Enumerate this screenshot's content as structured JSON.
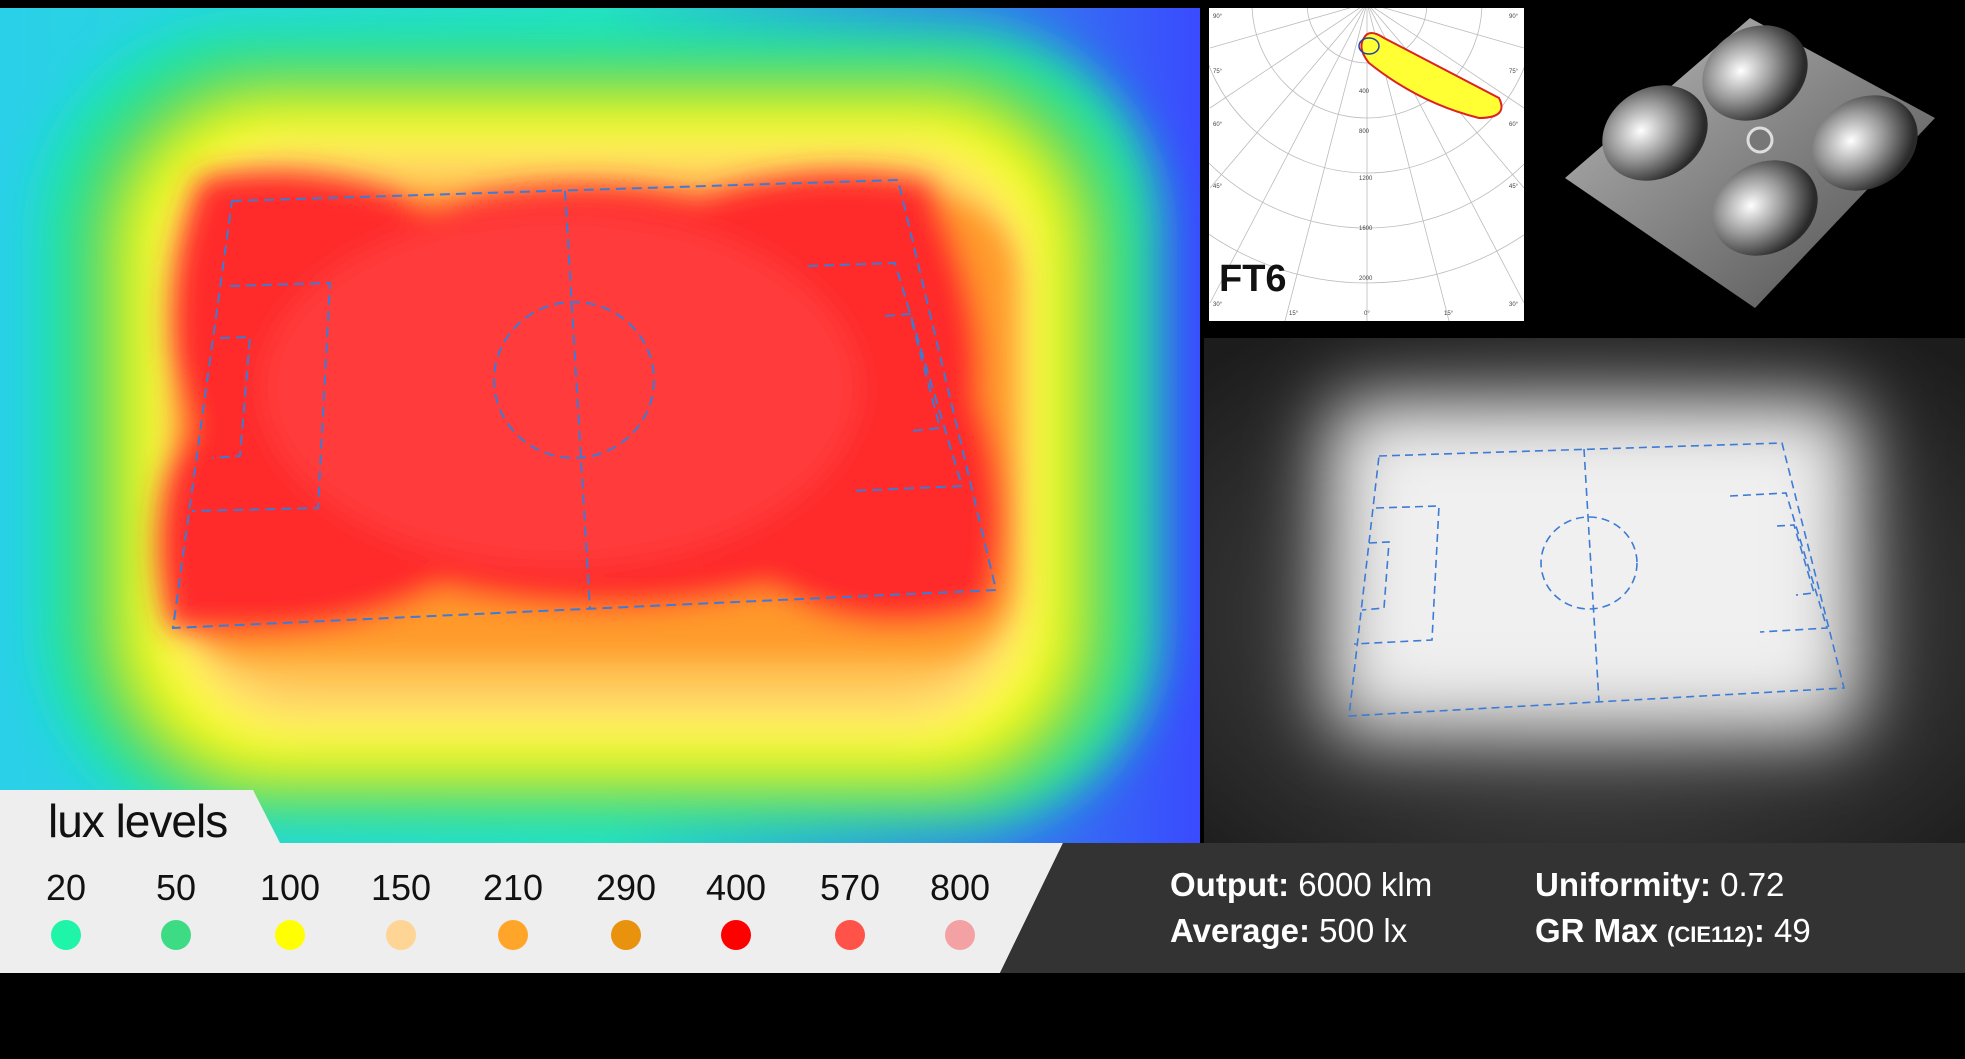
{
  "polar": {
    "label": "FT6",
    "angles": [
      "90°",
      "75°",
      "60°",
      "45°",
      "30°",
      "15°",
      "0°",
      "15°",
      "30°",
      "45°",
      "60°",
      "75°",
      "90°"
    ],
    "radial_values": [
      "400",
      "800",
      "1200",
      "1600",
      "2000"
    ]
  },
  "legend": {
    "title": "lux levels",
    "items": [
      {
        "value": "20",
        "color": "#1ff5a8"
      },
      {
        "value": "50",
        "color": "#3ddc84"
      },
      {
        "value": "100",
        "color": "#ffff00"
      },
      {
        "value": "150",
        "color": "#ffd595"
      },
      {
        "value": "210",
        "color": "#ffa62a"
      },
      {
        "value": "290",
        "color": "#e8920e"
      },
      {
        "value": "400",
        "color": "#ff0000"
      },
      {
        "value": "570",
        "color": "#ff5248"
      },
      {
        "value": "800",
        "color": "#f4a1a4"
      }
    ]
  },
  "stats": {
    "output_label": "Output:",
    "output_value": " 6000 klm",
    "average_label": "Average:",
    "average_value": " 500 lx",
    "uniformity_label": "Uniformity:",
    "uniformity_value": " 0.72",
    "gr_label": "GR Max ",
    "gr_note": "(CIE112)",
    "gr_colon": ":",
    "gr_value": " 49"
  },
  "colors": {
    "heatmap_outer": "#2b45ff",
    "heatmap_center": "#ff2a2a",
    "field_lines": "#3d7bd6",
    "stats_bg": "#333333",
    "legend_bg": "#eeeeee"
  }
}
